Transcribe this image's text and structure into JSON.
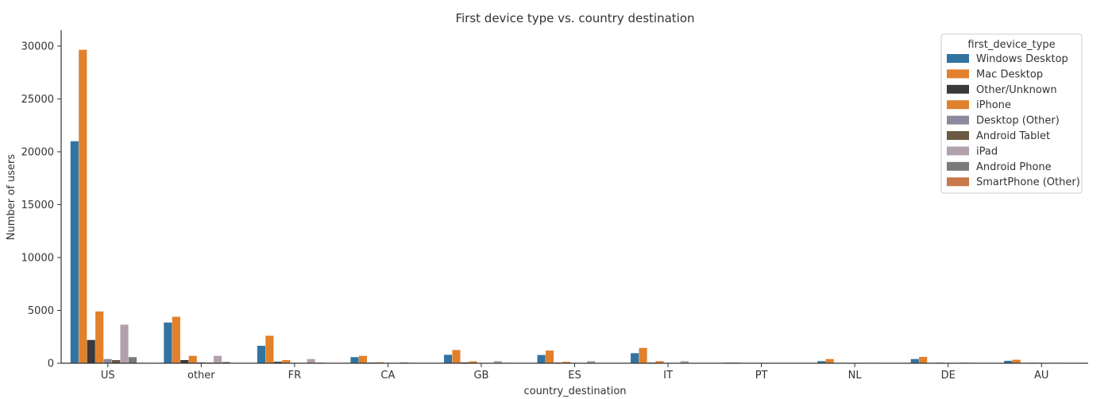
{
  "chart_data": {
    "type": "bar",
    "title": "First device type vs. country destination",
    "xlabel": "country_destination",
    "ylabel": "Number of users",
    "ylim": [
      0,
      31500
    ],
    "yticks": [
      0,
      5000,
      10000,
      15000,
      20000,
      25000,
      30000
    ],
    "categories": [
      "US",
      "other",
      "FR",
      "CA",
      "GB",
      "ES",
      "IT",
      "PT",
      "NL",
      "DE",
      "AU"
    ],
    "legend": {
      "title": "first_device_type",
      "placement": "top-right"
    },
    "grid": false,
    "series": [
      {
        "name": "Windows Desktop",
        "color": "#3274a1",
        "values": [
          21000,
          3850,
          1650,
          580,
          800,
          780,
          950,
          60,
          200,
          400,
          230
        ]
      },
      {
        "name": "Mac Desktop",
        "color": "#e1812c",
        "values": [
          29650,
          4400,
          2600,
          700,
          1250,
          1200,
          1450,
          70,
          400,
          600,
          330
        ]
      },
      {
        "name": "Other/Unknown",
        "color": "#3a3a3a",
        "values": [
          2200,
          300,
          140,
          60,
          80,
          60,
          60,
          20,
          20,
          40,
          20
        ]
      },
      {
        "name": "iPhone",
        "color": "#e1812c",
        "values": [
          4900,
          700,
          300,
          100,
          180,
          140,
          200,
          15,
          40,
          60,
          50
        ]
      },
      {
        "name": "Desktop (Other)",
        "color": "#8d8a9e",
        "values": [
          400,
          100,
          40,
          20,
          20,
          20,
          20,
          5,
          5,
          10,
          5
        ]
      },
      {
        "name": "Android Tablet",
        "color": "#6b5a43",
        "values": [
          300,
          60,
          30,
          15,
          15,
          15,
          15,
          3,
          3,
          5,
          3
        ]
      },
      {
        "name": "iPad",
        "color": "#b3a0ad",
        "values": [
          3650,
          700,
          400,
          90,
          200,
          200,
          200,
          20,
          40,
          60,
          40
        ]
      },
      {
        "name": "Android Phone",
        "color": "#7a7a7a",
        "values": [
          580,
          120,
          60,
          30,
          40,
          30,
          30,
          5,
          10,
          15,
          10
        ]
      },
      {
        "name": "SmartPhone (Other)",
        "color": "#c8784a",
        "values": [
          40,
          10,
          5,
          3,
          3,
          3,
          3,
          1,
          1,
          2,
          1
        ]
      }
    ]
  }
}
